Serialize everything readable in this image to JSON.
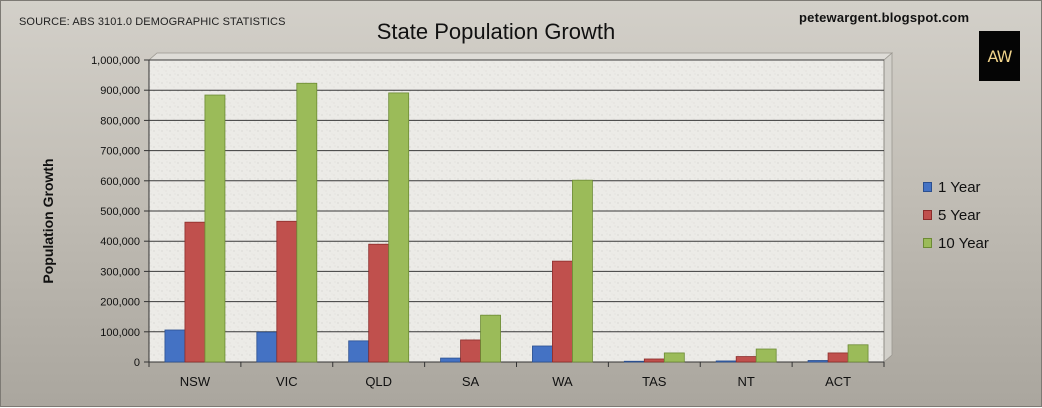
{
  "header": {
    "source": "SOURCE: ABS 3101.0 DEMOGRAPHIC STATISTICS",
    "blog": "petewargent.blogspot.com",
    "logo_text": "AW"
  },
  "colors": {
    "series": [
      "#4472c4",
      "#c0504d",
      "#9bbb59"
    ],
    "series_stroke": [
      "#2b4f8f",
      "#8b2c2a",
      "#6c8a34"
    ],
    "plot_bg": "#ecebe7",
    "grid": "#3a3a3a"
  },
  "chart_data": {
    "type": "bar",
    "title": "State Population Growth",
    "ylabel": "Population Growth",
    "xlabel": "",
    "ylim": [
      0,
      1000000
    ],
    "ytick_step": 100000,
    "yticks": [
      "0",
      "100,000",
      "200,000",
      "300,000",
      "400,000",
      "500,000",
      "600,000",
      "700,000",
      "800,000",
      "900,000",
      "1,000,000"
    ],
    "grid": true,
    "legend_position": "right",
    "categories": [
      "NSW",
      "VIC",
      "QLD",
      "SA",
      "WA",
      "TAS",
      "NT",
      "ACT"
    ],
    "series": [
      {
        "name": "1 Year",
        "values": [
          106000,
          99000,
          70000,
          13000,
          53000,
          2500,
          3500,
          5000
        ]
      },
      {
        "name": "5 Year",
        "values": [
          463000,
          466000,
          390000,
          73000,
          334000,
          10000,
          18000,
          30000
        ]
      },
      {
        "name": "10 Year",
        "values": [
          884000,
          923000,
          891000,
          155000,
          602000,
          30000,
          43000,
          57000
        ]
      }
    ]
  }
}
